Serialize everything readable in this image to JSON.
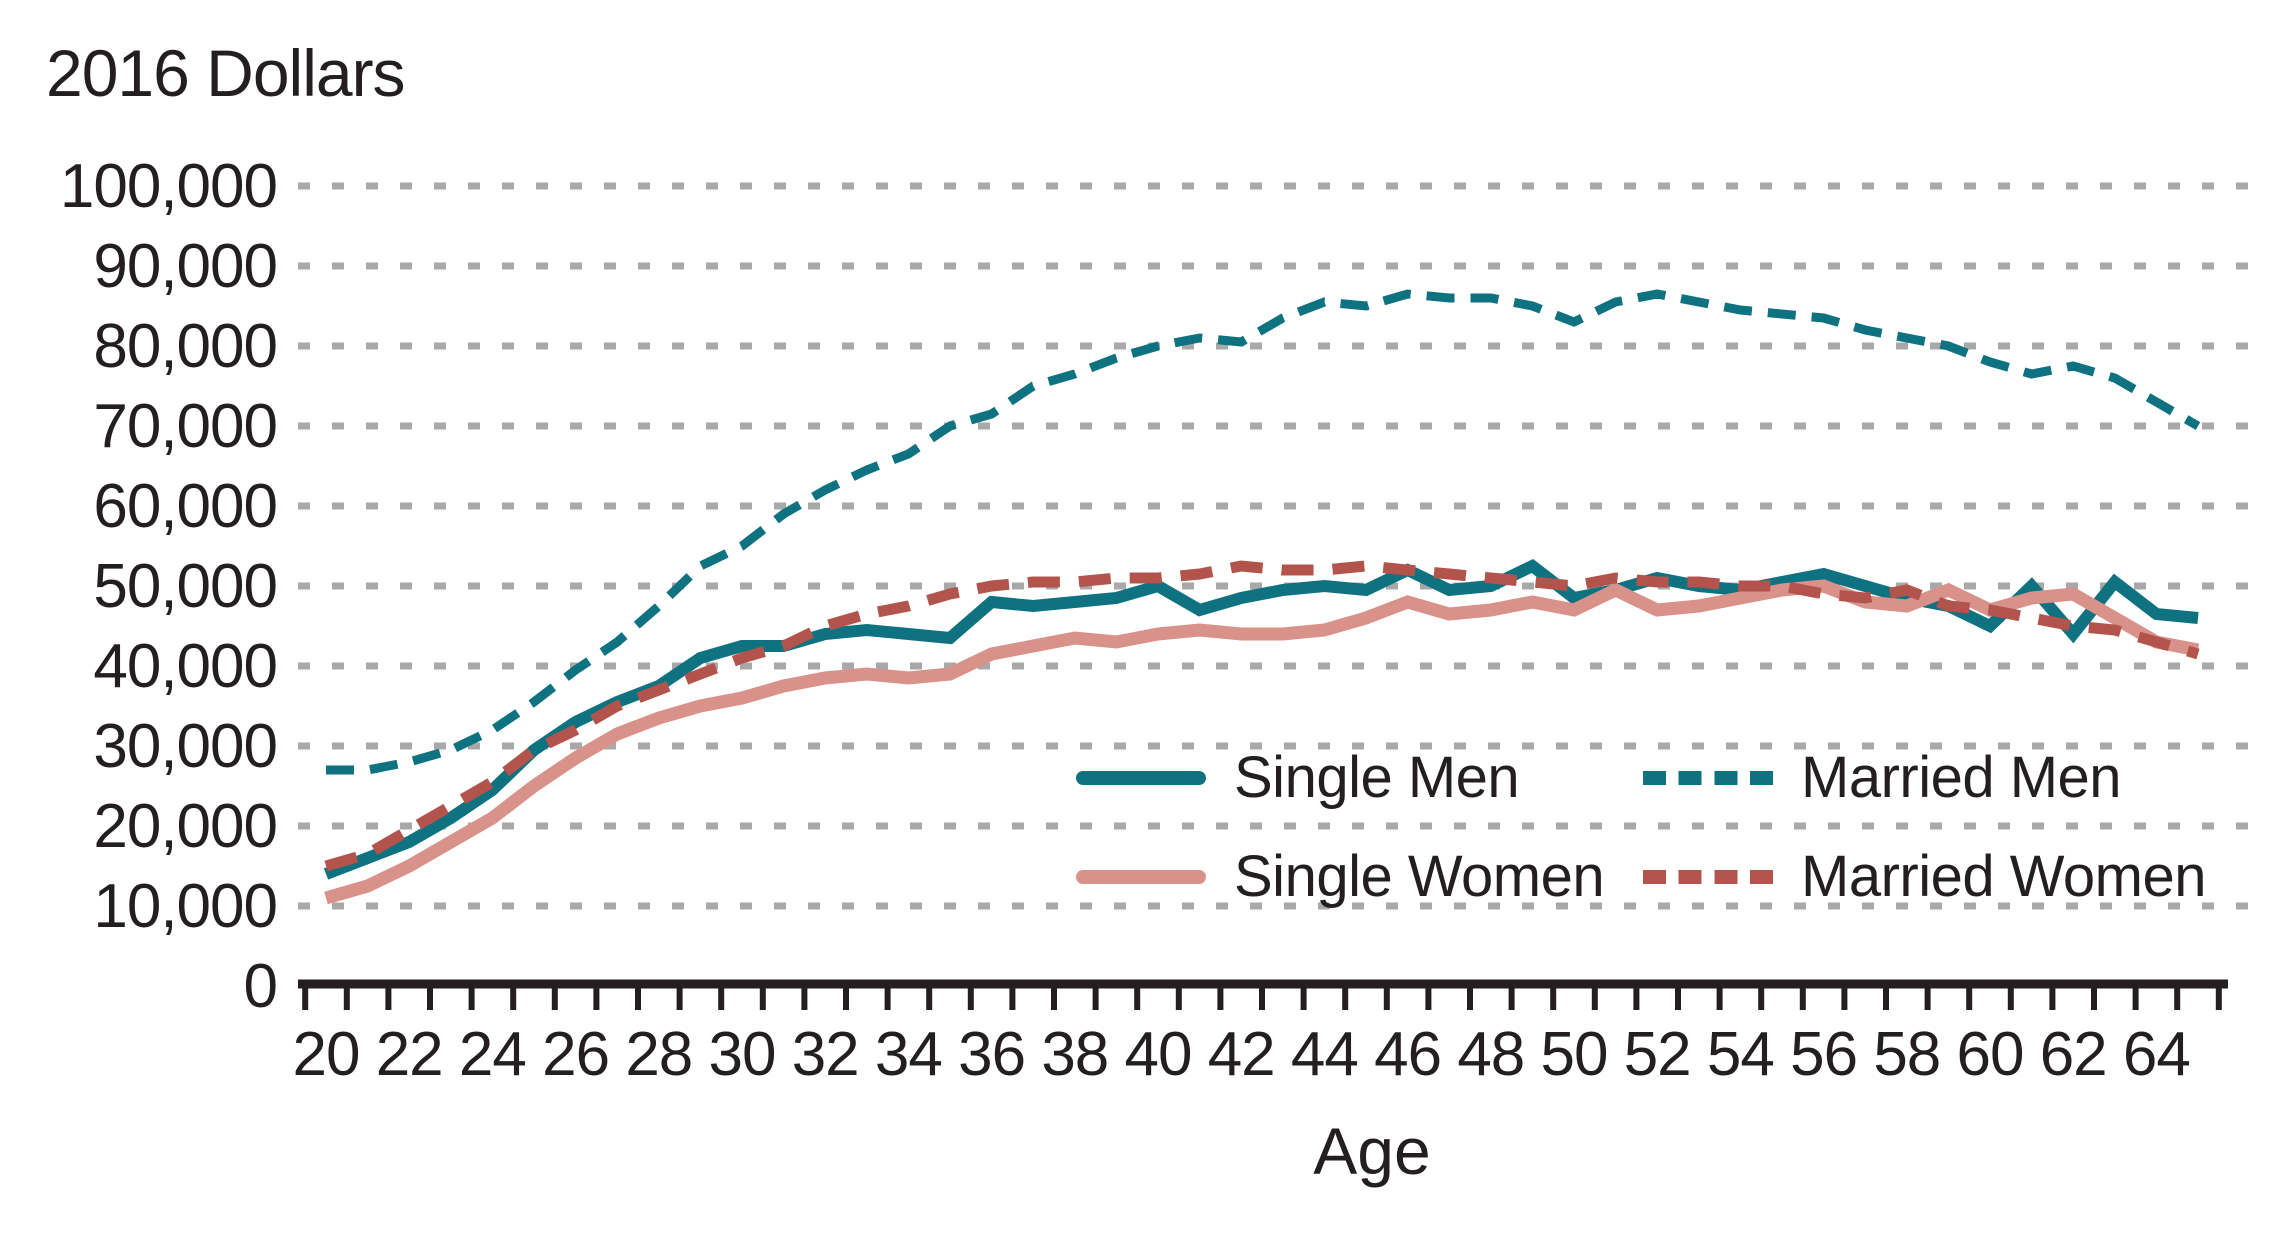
{
  "title": "2016 Dollars",
  "chart_data": {
    "type": "line",
    "title": "2016 Dollars",
    "xlabel": "Age",
    "ylabel": "2016 Dollars",
    "x_range": [
      20,
      65
    ],
    "y_range": [
      0,
      100000
    ],
    "grid": "horizontal-dotted",
    "grid_color": "#a8a8a8",
    "axis_color": "#231f20",
    "legend_position": "inside-bottom-center",
    "y_ticks": [
      {
        "label": "100,000",
        "value": 100000
      },
      {
        "label": "90,000",
        "value": 90000
      },
      {
        "label": "80,000",
        "value": 80000
      },
      {
        "label": "70,000",
        "value": 70000
      },
      {
        "label": "60,000",
        "value": 60000
      },
      {
        "label": "50,000",
        "value": 50000
      },
      {
        "label": "40,000",
        "value": 40000
      },
      {
        "label": "30,000",
        "value": 30000
      },
      {
        "label": "20,000",
        "value": 20000
      },
      {
        "label": "10,000",
        "value": 10000
      },
      {
        "label": "0",
        "value": 0
      }
    ],
    "x_label_ages": [
      20,
      22,
      24,
      26,
      28,
      30,
      32,
      34,
      36,
      38,
      40,
      42,
      44,
      46,
      48,
      50,
      52,
      54,
      56,
      58,
      60,
      62,
      64
    ],
    "ages": [
      20,
      21,
      22,
      23,
      24,
      25,
      26,
      27,
      28,
      29,
      30,
      31,
      32,
      33,
      34,
      35,
      36,
      37,
      38,
      39,
      40,
      41,
      42,
      43,
      44,
      45,
      46,
      47,
      48,
      49,
      50,
      51,
      52,
      53,
      54,
      55,
      56,
      57,
      58,
      59,
      60,
      61,
      62,
      63,
      64,
      65
    ],
    "series": [
      {
        "name": "Single Men",
        "style": "solid",
        "color": "#0f7280",
        "values": [
          14000,
          16000,
          18000,
          21000,
          24500,
          29500,
          33000,
          35500,
          37500,
          41000,
          42500,
          42500,
          44000,
          44500,
          44000,
          43500,
          48000,
          47500,
          48000,
          48500,
          50000,
          47000,
          48500,
          49500,
          50000,
          49500,
          52000,
          49500,
          50000,
          52500,
          48500,
          49500,
          51000,
          50000,
          49500,
          50500,
          51500,
          50000,
          48500,
          47500,
          45000,
          50000,
          44000,
          50500,
          46500,
          46000
        ]
      },
      {
        "name": "Married Men",
        "style": "dashed",
        "color": "#0f7280",
        "values": [
          27000,
          27000,
          28000,
          29500,
          32000,
          35500,
          39500,
          43000,
          47500,
          52500,
          55000,
          59000,
          62000,
          64500,
          66500,
          70000,
          71500,
          75000,
          76500,
          78500,
          80000,
          81000,
          80500,
          83500,
          85500,
          85000,
          86500,
          86000,
          86000,
          85000,
          83000,
          85500,
          86500,
          85500,
          84500,
          84000,
          83500,
          82000,
          81000,
          80000,
          78000,
          76500,
          77500,
          76000,
          73000,
          70000
        ]
      },
      {
        "name": "Single Women",
        "style": "solid",
        "color": "#d9928a",
        "values": [
          11000,
          12500,
          15000,
          18000,
          21000,
          25000,
          28500,
          31500,
          33500,
          35000,
          36000,
          37500,
          38500,
          39000,
          38500,
          39000,
          41500,
          42500,
          43500,
          43000,
          44000,
          44500,
          44000,
          44000,
          44500,
          46000,
          48000,
          46500,
          47000,
          48000,
          47000,
          49500,
          47000,
          47500,
          48500,
          49500,
          50000,
          48000,
          47500,
          49500,
          47000,
          48500,
          49000,
          46000,
          43000,
          42000
        ]
      },
      {
        "name": "Married Women",
        "style": "dashed",
        "color": "#b2544c",
        "values": [
          15000,
          16500,
          19500,
          22500,
          25500,
          29500,
          32000,
          35000,
          37000,
          39000,
          41000,
          42500,
          45000,
          46500,
          47500,
          49000,
          50000,
          50500,
          50500,
          51000,
          51000,
          51500,
          52500,
          52000,
          52000,
          52500,
          52000,
          51500,
          51000,
          50500,
          50000,
          51000,
          50500,
          50500,
          50000,
          50000,
          49000,
          48500,
          49500,
          47500,
          47000,
          46000,
          45000,
          44500,
          43000,
          41500
        ]
      }
    ]
  }
}
